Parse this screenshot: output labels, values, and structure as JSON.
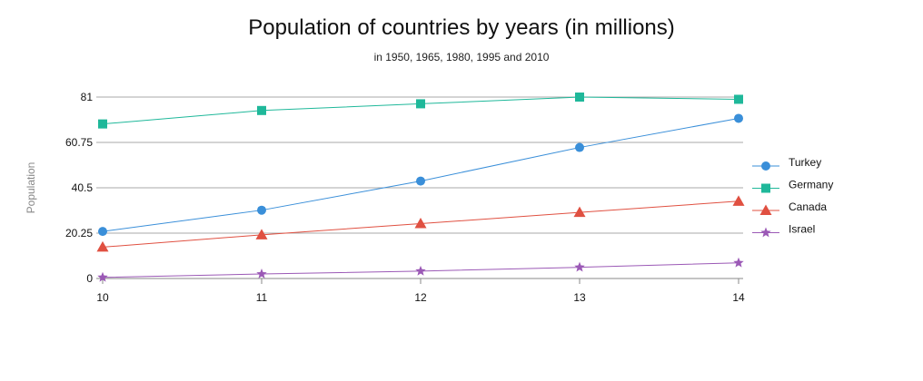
{
  "chart_data": {
    "type": "line",
    "title": "Population of countries by years (in millions)",
    "subtitle": "in 1950, 1965, 1980, 1995 and 2010",
    "xlabel": "",
    "ylabel": "Population",
    "x": [
      10,
      11,
      12,
      13,
      14
    ],
    "x_tick_labels": [
      "10",
      "11",
      "12",
      "13",
      "14"
    ],
    "y_ticks": [
      0,
      20.25,
      40.5,
      60.75,
      81
    ],
    "y_tick_labels": [
      "0",
      "20.25",
      "40.5",
      "60.75",
      "81"
    ],
    "ylim": [
      0,
      81
    ],
    "grid": true,
    "legend_position": "right",
    "series": [
      {
        "name": "Turkey",
        "values": [
          21,
          30.5,
          43.5,
          58.5,
          71.5
        ],
        "color": "#3a8fd9",
        "marker": "circle"
      },
      {
        "name": "Germany",
        "values": [
          69,
          75,
          78,
          81,
          80
        ],
        "color": "#1fb89a",
        "marker": "square"
      },
      {
        "name": "Canada",
        "values": [
          14,
          19.5,
          24.5,
          29.5,
          34.5
        ],
        "color": "#e05041",
        "marker": "triangle"
      },
      {
        "name": "Israel",
        "values": [
          0.5,
          2,
          3.3,
          5,
          7
        ],
        "color": "#9b59b6",
        "marker": "star"
      }
    ]
  }
}
